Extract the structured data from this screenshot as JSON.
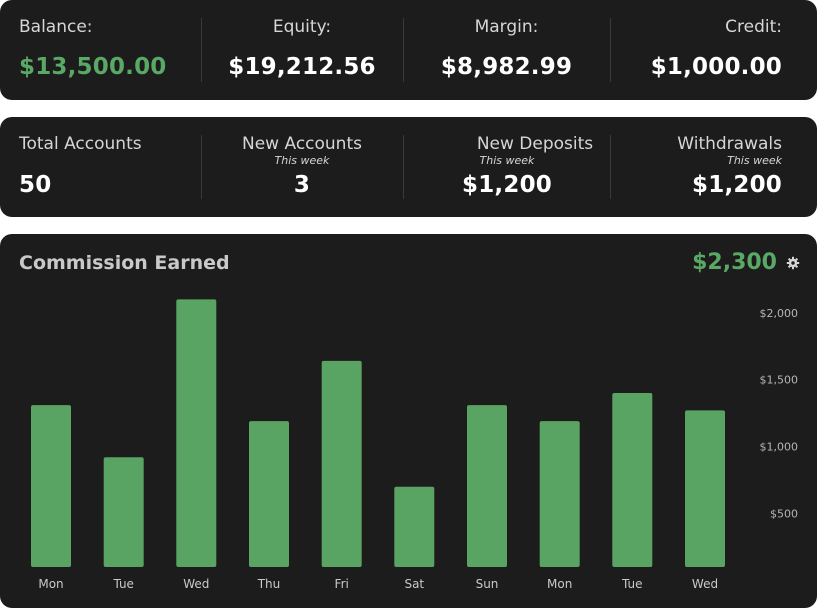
{
  "balance_panel": {
    "items": [
      {
        "label": "Balance:",
        "value": "$13,500.00",
        "color": "#5aa866"
      },
      {
        "label": "Equity:",
        "value": "$19,212.56",
        "color": "#ffffff"
      },
      {
        "label": "Margin:",
        "value": "$8,982.99",
        "color": "#ffffff"
      },
      {
        "label": "Credit:",
        "value": "$1,000.00",
        "color": "#ffffff"
      }
    ]
  },
  "accounts_panel": {
    "items": [
      {
        "label": "Total Accounts",
        "sub": "",
        "value": "50"
      },
      {
        "label": "New Accounts",
        "sub": "This week",
        "value": "3"
      },
      {
        "label": "New Deposits",
        "sub": "This week",
        "value": "$1,200"
      },
      {
        "label": "Withdrawals",
        "sub": "This week",
        "value": "$1,200"
      }
    ]
  },
  "commission": {
    "title": "Commission Earned",
    "total": "$2,300",
    "settings_icon": "gear-icon"
  },
  "chart_data": {
    "type": "bar",
    "title": "Commission Earned",
    "categories": [
      "Mon",
      "Tue",
      "Wed",
      "Thu",
      "Fri",
      "Sat",
      "Sun",
      "Mon",
      "Tue",
      "Wed"
    ],
    "values": [
      1310,
      920,
      2100,
      1190,
      1640,
      700,
      1310,
      1190,
      1400,
      1270
    ],
    "yticks": [
      500,
      1000,
      1500,
      2000
    ],
    "ytick_labels": [
      "$500",
      "$1,000",
      "$1,500",
      "$2,000"
    ],
    "ylim": [
      100,
      2200
    ],
    "grid": false,
    "bar_color": "#59a463",
    "ylabel": "",
    "xlabel": ""
  }
}
